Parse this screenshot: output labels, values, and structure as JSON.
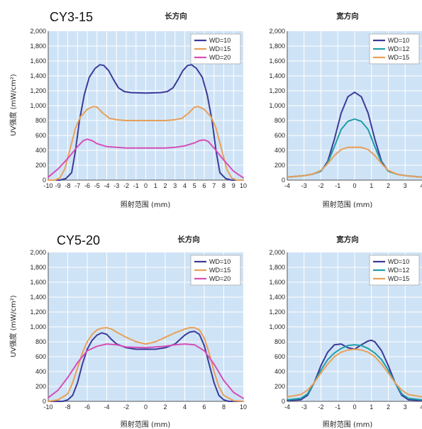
{
  "colors": {
    "WD10": "#3b3b9a",
    "WD15": "#e8a058",
    "WD20": "#d64fb6",
    "WD12": "#1f9ea8"
  },
  "chart_data": [
    {
      "id": "cy315-long",
      "type": "line",
      "title": "CY3-15",
      "subtitle": "长方向",
      "ylabel": "UV强度 (mW/cm²)",
      "xlabel": "照射范围 (mm)",
      "xlim": [
        -10,
        10
      ],
      "ylim": [
        0,
        2000
      ],
      "yticks": [
        "0",
        "200",
        "400",
        "600",
        "800",
        "1,000",
        "1,200",
        "1,400",
        "1,600",
        "1,800",
        "2,000"
      ],
      "xticks": [
        "-10",
        "-9",
        "-8",
        "-7",
        "-6",
        "-5",
        "-4",
        "-3",
        "-2",
        "-1",
        "0",
        "1",
        "2",
        "3",
        "4",
        "5",
        "6",
        "7",
        "8",
        "9",
        "10"
      ],
      "legend": "top-right",
      "grid": true,
      "series": [
        {
          "name": "WD=10",
          "color": "#3b3b9a",
          "x": [
            -10,
            -8.8,
            -8.2,
            -7.6,
            -7.2,
            -6.8,
            -6.3,
            -5.8,
            -5.2,
            -4.7,
            -4.3,
            -3.8,
            -3.3,
            -2.8,
            -2.2,
            -1.5,
            0,
            1.5,
            2.2,
            2.8,
            3.3,
            3.8,
            4.3,
            4.7,
            5.2,
            5.8,
            6.3,
            6.8,
            7.2,
            7.6,
            8.2,
            8.8,
            10
          ],
          "y": [
            0,
            0,
            20,
            100,
            400,
            800,
            1150,
            1380,
            1500,
            1550,
            1540,
            1470,
            1350,
            1240,
            1190,
            1175,
            1170,
            1175,
            1190,
            1240,
            1350,
            1470,
            1540,
            1550,
            1500,
            1380,
            1150,
            800,
            400,
            100,
            20,
            0,
            0
          ]
        },
        {
          "name": "WD=15",
          "color": "#e8a058",
          "x": [
            -10,
            -9.3,
            -8.8,
            -8.3,
            -7.8,
            -7.2,
            -6.7,
            -6,
            -5.4,
            -5,
            -4.4,
            -3.7,
            -3,
            -2,
            0,
            2,
            3,
            3.7,
            4.4,
            5,
            5.4,
            6,
            6.7,
            7.2,
            7.8,
            8.3,
            8.8,
            9.3,
            10
          ],
          "y": [
            0,
            0,
            30,
            150,
            400,
            700,
            850,
            950,
            990,
            980,
            900,
            830,
            810,
            800,
            800,
            800,
            810,
            830,
            900,
            980,
            990,
            950,
            850,
            700,
            400,
            150,
            30,
            0,
            0
          ]
        },
        {
          "name": "WD=20",
          "color": "#d64fb6",
          "x": [
            -10,
            -9,
            -8,
            -7,
            -6.4,
            -6,
            -5.5,
            -5,
            -4,
            -3,
            -2,
            0,
            2,
            3,
            4,
            5,
            5.5,
            6,
            6.4,
            7,
            8,
            9,
            10
          ],
          "y": [
            40,
            150,
            290,
            450,
            530,
            550,
            530,
            490,
            450,
            440,
            430,
            430,
            430,
            440,
            460,
            500,
            530,
            540,
            520,
            430,
            270,
            120,
            30
          ]
        }
      ]
    },
    {
      "id": "cy315-wide",
      "type": "line",
      "title": "",
      "subtitle": "宽方向",
      "ylabel": "",
      "xlabel": "照射范围 (mm)",
      "xlim": [
        -4,
        4
      ],
      "ylim": [
        0,
        2000
      ],
      "yticks": [
        "0",
        "200",
        "400",
        "600",
        "800",
        "1,000",
        "1,200",
        "1,400",
        "1,600",
        "1,800",
        "2,000"
      ],
      "xticks": [
        "-4",
        "-3",
        "-2",
        "-1",
        "0",
        "1",
        "2",
        "3",
        "4"
      ],
      "legend": "top-right",
      "grid": true,
      "series": [
        {
          "name": "WD=10",
          "color": "#3b3b9a",
          "x": [
            -4,
            -3,
            -2.5,
            -2,
            -1.6,
            -1.2,
            -0.8,
            -0.4,
            0,
            0.4,
            0.8,
            1.2,
            1.6,
            2,
            2.5,
            3,
            4
          ],
          "y": [
            40,
            60,
            80,
            120,
            250,
            550,
            900,
            1120,
            1180,
            1120,
            900,
            550,
            250,
            120,
            80,
            60,
            40
          ]
        },
        {
          "name": "WD=12",
          "color": "#1f9ea8",
          "x": [
            -4,
            -3,
            -2.5,
            -2,
            -1.6,
            -1.2,
            -0.8,
            -0.4,
            0,
            0.4,
            0.8,
            1.2,
            1.6,
            2,
            2.5,
            3,
            4
          ],
          "y": [
            40,
            60,
            80,
            120,
            230,
            450,
            680,
            790,
            820,
            790,
            680,
            450,
            230,
            120,
            80,
            60,
            40
          ]
        },
        {
          "name": "WD=15",
          "color": "#e8a058",
          "x": [
            -4,
            -3,
            -2.5,
            -2,
            -1.6,
            -1.2,
            -0.8,
            -0.4,
            0,
            0.4,
            0.8,
            1.2,
            1.6,
            2,
            2.5,
            3,
            4
          ],
          "y": [
            40,
            60,
            80,
            130,
            220,
            330,
            410,
            440,
            440,
            440,
            410,
            330,
            220,
            130,
            80,
            60,
            40
          ]
        }
      ]
    },
    {
      "id": "cy520-long",
      "type": "line",
      "title": "CY5-20",
      "subtitle": "长方向",
      "ylabel": "UV强度 (mW/cm²)",
      "xlabel": "照射范围 (mm)",
      "xlim": [
        -10,
        10
      ],
      "ylim": [
        0,
        2000
      ],
      "yticks": [
        "0",
        "200",
        "400",
        "600",
        "800",
        "1,000",
        "1,200",
        "1,400",
        "1,600",
        "1,800",
        "2,000"
      ],
      "xticks": [
        "-10",
        "-8",
        "-6",
        "-4",
        "-2",
        "0",
        "2",
        "4",
        "6",
        "8",
        "10"
      ],
      "legend": "top-right",
      "grid": true,
      "series": [
        {
          "name": "WD=10",
          "color": "#3b3b9a",
          "x": [
            -10,
            -8.5,
            -8,
            -7.5,
            -7,
            -6.5,
            -6,
            -5.5,
            -5,
            -4.5,
            -4,
            -3.5,
            -3,
            -2,
            -1,
            0,
            1,
            2,
            3,
            3.5,
            4,
            4.5,
            5,
            5.5,
            6,
            6.5,
            7,
            7.5,
            8,
            8.5,
            10
          ],
          "y": [
            0,
            0,
            20,
            80,
            250,
            500,
            700,
            820,
            890,
            920,
            900,
            830,
            770,
            720,
            700,
            700,
            700,
            720,
            770,
            830,
            890,
            930,
            940,
            900,
            750,
            500,
            250,
            80,
            20,
            0,
            0
          ]
        },
        {
          "name": "WD=15",
          "color": "#e8a058",
          "x": [
            -10,
            -9,
            -8,
            -7.5,
            -7,
            -6.5,
            -6,
            -5.5,
            -5,
            -4.5,
            -4,
            -3.5,
            -3,
            -2,
            -1,
            0,
            1,
            2,
            3,
            4,
            4.5,
            5,
            5.5,
            6,
            6.5,
            7,
            7.5,
            8,
            9,
            10
          ],
          "y": [
            0,
            20,
            100,
            250,
            450,
            650,
            800,
            900,
            960,
            985,
            990,
            970,
            930,
            860,
            800,
            770,
            800,
            860,
            920,
            970,
            990,
            990,
            960,
            850,
            650,
            400,
            200,
            80,
            10,
            0
          ]
        },
        {
          "name": "WD=20",
          "color": "#d64fb6",
          "x": [
            -10,
            -9,
            -8,
            -7,
            -6,
            -5,
            -4,
            -3,
            -2,
            0,
            2,
            3,
            4,
            5,
            6,
            7,
            8,
            9,
            10
          ],
          "y": [
            50,
            150,
            320,
            520,
            680,
            740,
            770,
            760,
            730,
            720,
            740,
            760,
            770,
            760,
            680,
            500,
            280,
            120,
            40
          ]
        }
      ]
    },
    {
      "id": "cy520-wide",
      "type": "line",
      "title": "",
      "subtitle": "宽方向",
      "ylabel": "",
      "xlabel": "照射范围 (mm)",
      "xlim": [
        -4,
        4
      ],
      "ylim": [
        0,
        2000
      ],
      "yticks": [
        "0",
        "200",
        "400",
        "600",
        "800",
        "1,000",
        "1,200",
        "1,400",
        "1,600",
        "1,800",
        "2,000"
      ],
      "xticks": [
        "-4",
        "-3",
        "-2",
        "-1",
        "0",
        "1",
        "2",
        "3",
        "4"
      ],
      "legend": "top-right",
      "grid": true,
      "series": [
        {
          "name": "WD=10",
          "color": "#3b3b9a",
          "x": [
            -4,
            -3.2,
            -2.8,
            -2.4,
            -2,
            -1.6,
            -1.2,
            -0.8,
            -0.4,
            0,
            0.4,
            0.8,
            1,
            1.2,
            1.6,
            2,
            2.4,
            2.8,
            3.2,
            4
          ],
          "y": [
            10,
            20,
            80,
            250,
            480,
            660,
            760,
            770,
            720,
            700,
            760,
            810,
            820,
            800,
            680,
            480,
            250,
            80,
            20,
            10
          ]
        },
        {
          "name": "WD=12",
          "color": "#1f9ea8",
          "x": [
            -4,
            -3.2,
            -2.8,
            -2.4,
            -2,
            -1.6,
            -1.2,
            -0.8,
            -0.4,
            0,
            0.4,
            0.8,
            1.2,
            1.6,
            2,
            2.4,
            2.8,
            3.2,
            4
          ],
          "y": [
            20,
            40,
            100,
            250,
            420,
            560,
            650,
            710,
            750,
            760,
            750,
            710,
            650,
            560,
            420,
            250,
            100,
            40,
            20
          ]
        },
        {
          "name": "WD=15",
          "color": "#e8a058",
          "x": [
            -4,
            -3.2,
            -2.8,
            -2.4,
            -2,
            -1.6,
            -1.2,
            -0.8,
            -0.4,
            0,
            0.4,
            0.8,
            1.2,
            1.6,
            2,
            2.4,
            2.8,
            3.2,
            4
          ],
          "y": [
            60,
            90,
            150,
            250,
            380,
            500,
            600,
            660,
            690,
            700,
            690,
            660,
            600,
            500,
            380,
            250,
            150,
            90,
            60
          ]
        }
      ]
    }
  ]
}
